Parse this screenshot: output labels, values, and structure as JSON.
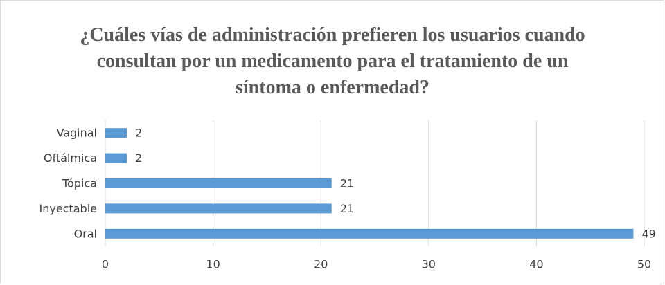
{
  "chart_data": {
    "type": "bar",
    "orientation": "horizontal",
    "title": "¿Cuáles vías de administración prefieren los usuarios cuando consultan por un medicamento para el tratamiento de un síntoma o enfermedad?",
    "categories": [
      "Oral",
      "Inyectable",
      "Tópica",
      "Oftálmica",
      "Vaginal"
    ],
    "values": [
      49,
      21,
      21,
      2,
      2
    ],
    "color": "#5b9bd5",
    "xlim": [
      0,
      50
    ],
    "xticks": [
      0,
      10,
      20,
      30,
      40,
      50
    ],
    "grid": true,
    "data_labels": true
  }
}
